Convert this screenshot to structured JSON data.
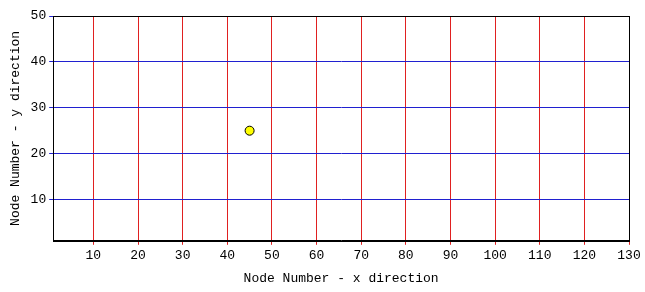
{
  "chart_data": {
    "type": "bubble",
    "x_label": "Node Number - x direction",
    "y_label": "Node Number - y direction",
    "x": [
      45
    ],
    "values": [
      25
    ],
    "radius": [
      4.5
    ],
    "color": "#ffff00",
    "xlim": [
      1,
      130
    ],
    "xticks": [
      10,
      20,
      30,
      40,
      50,
      60,
      70,
      80,
      90,
      100,
      110,
      120,
      130
    ],
    "ylim": [
      1,
      50
    ],
    "yticks": [
      10,
      20,
      30,
      40,
      50
    ],
    "grid": true
  }
}
